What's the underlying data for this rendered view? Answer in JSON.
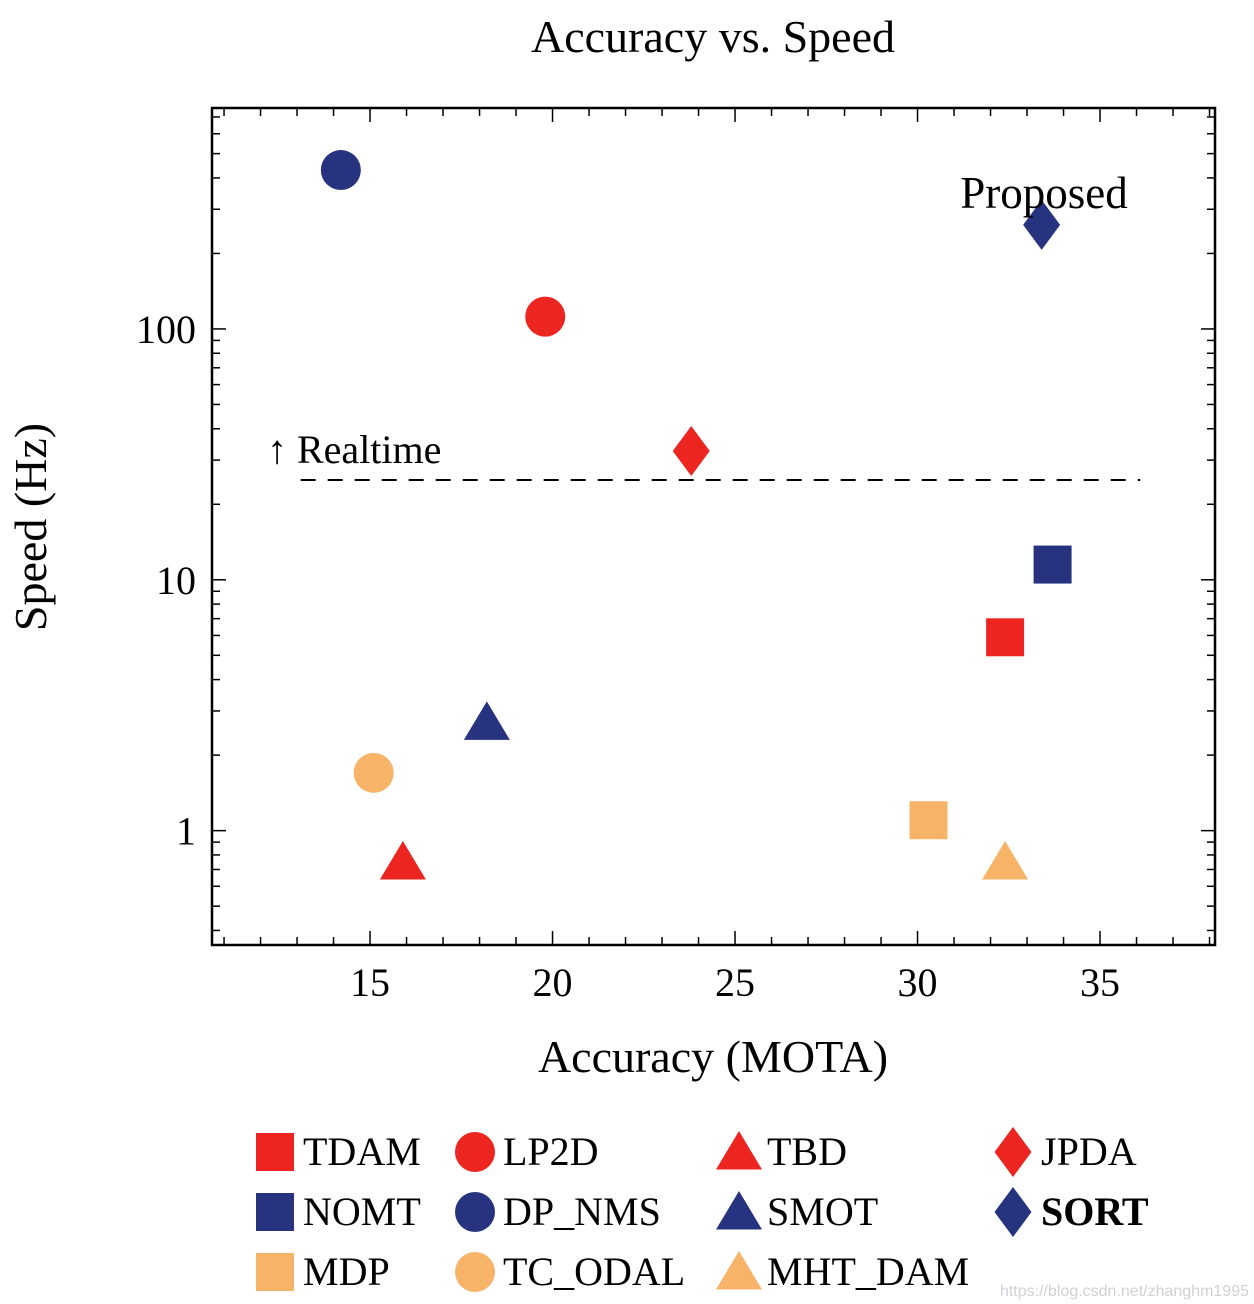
{
  "watermark": "https://blog.csdn.net/zhanghm1995",
  "chart_data": {
    "type": "scatter",
    "title": "Accuracy vs. Speed",
    "xlabel": "Accuracy (MOTA)",
    "ylabel": "Speed (Hz)",
    "xlim": [
      10.67,
      38.15
    ],
    "ylim": [
      0.35,
      760
    ],
    "y_log_scale": true,
    "grid": false,
    "x_major_ticks": [
      15,
      20,
      25,
      30,
      35
    ],
    "y_major_ticks": [
      1,
      10,
      100
    ],
    "colors": {
      "red": "#ec2520",
      "navy": "#283380",
      "orange": "#f7b469"
    },
    "annotations": {
      "realtime_label": "↑ Realtime",
      "realtime_line_y": 25,
      "realtime_line_x": [
        13.1,
        36.1
      ],
      "proposed_label": "Proposed"
    },
    "series": [
      {
        "name": "TDAM",
        "marker": "square",
        "color": "red",
        "x": 32.4,
        "y": 5.9
      },
      {
        "name": "NOMT",
        "marker": "square",
        "color": "navy",
        "x": 33.7,
        "y": 11.5
      },
      {
        "name": "MDP",
        "marker": "square",
        "color": "orange",
        "x": 30.3,
        "y": 1.1
      },
      {
        "name": "LP2D",
        "marker": "circle",
        "color": "red",
        "x": 19.8,
        "y": 112
      },
      {
        "name": "DP_NMS",
        "marker": "circle",
        "color": "navy",
        "x": 14.2,
        "y": 430
      },
      {
        "name": "TC_ODAL",
        "marker": "circle",
        "color": "orange",
        "x": 15.1,
        "y": 1.7
      },
      {
        "name": "TBD",
        "marker": "triangle",
        "color": "red",
        "x": 15.9,
        "y": 0.75
      },
      {
        "name": "SMOT",
        "marker": "triangle",
        "color": "navy",
        "x": 18.2,
        "y": 2.7
      },
      {
        "name": "MHT_DAM",
        "marker": "triangle",
        "color": "orange",
        "x": 32.4,
        "y": 0.75
      },
      {
        "name": "JPDA",
        "marker": "diamond",
        "color": "red",
        "x": 23.8,
        "y": 32.6
      },
      {
        "name": "SORT",
        "marker": "diamond",
        "color": "navy",
        "x": 33.4,
        "y": 260,
        "bold": true
      }
    ],
    "legend": {
      "position": "below",
      "columns": [
        [
          "TDAM",
          "NOMT",
          "MDP"
        ],
        [
          "LP2D",
          "DP_NMS",
          "TC_ODAL"
        ],
        [
          "TBD",
          "SMOT",
          "MHT_DAM"
        ],
        [
          "JPDA",
          "SORT"
        ]
      ]
    }
  }
}
